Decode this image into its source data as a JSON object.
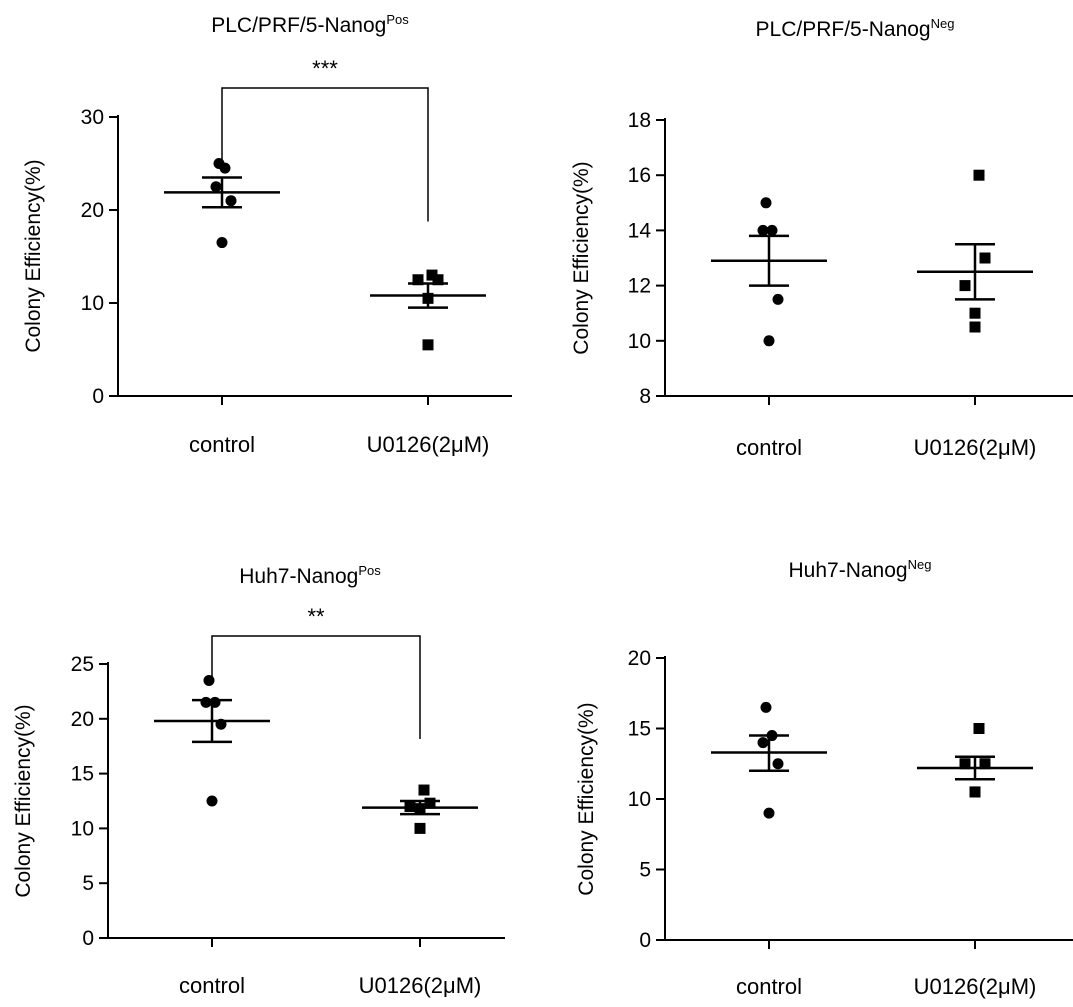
{
  "chart_data": [
    {
      "type": "scatter",
      "title": "PLC/PRF/5-Nanog",
      "title_sup": "Pos",
      "ylabel": "Colony Efficiency(%)",
      "categories": [
        "control",
        "U0126(2μM)"
      ],
      "yticks": [
        "0",
        "10",
        "20",
        "30"
      ],
      "ylim": [
        0,
        30
      ],
      "series": [
        {
          "marker": "circle",
          "values": [
            25,
            24.5,
            22.5,
            21,
            16.5
          ],
          "mean": 21.9,
          "sem": [
            20.3,
            23.5
          ]
        },
        {
          "marker": "square",
          "values": [
            13,
            12.5,
            12.5,
            10.5,
            5.5
          ],
          "mean": 10.8,
          "sem": [
            9.5,
            12.1
          ]
        }
      ],
      "significance": "***"
    },
    {
      "type": "scatter",
      "title": "PLC/PRF/5-Nanog",
      "title_sup": "Neg",
      "ylabel": "Colony Efficiency(%)",
      "categories": [
        "control",
        "U0126(2μM)"
      ],
      "yticks": [
        "8",
        "10",
        "12",
        "14",
        "16",
        "18"
      ],
      "ylim": [
        8,
        18
      ],
      "series": [
        {
          "marker": "circle",
          "values": [
            15,
            14,
            14,
            11.5,
            10
          ],
          "mean": 12.9,
          "sem": [
            12.0,
            13.8
          ]
        },
        {
          "marker": "square",
          "values": [
            16,
            13,
            12,
            11,
            10.5
          ],
          "mean": 12.5,
          "sem": [
            11.5,
            13.5
          ]
        }
      ]
    },
    {
      "type": "scatter",
      "title": "Huh7-Nanog",
      "title_sup": "Pos",
      "ylabel": "Colony Efficiency(%)",
      "categories": [
        "control",
        "U0126(2μM)"
      ],
      "yticks": [
        "0",
        "5",
        "10",
        "15",
        "20",
        "25"
      ],
      "ylim": [
        0,
        25
      ],
      "series": [
        {
          "marker": "circle",
          "values": [
            23.5,
            21.5,
            21.5,
            19.5,
            12.5
          ],
          "mean": 19.8,
          "sem": [
            17.9,
            21.7
          ]
        },
        {
          "marker": "square",
          "values": [
            13.5,
            12.3,
            12,
            11.8,
            10
          ],
          "mean": 11.9,
          "sem": [
            11.3,
            12.5
          ]
        }
      ],
      "significance": "**"
    },
    {
      "type": "scatter",
      "title": "Huh7-Nanog",
      "title_sup": "Neg",
      "ylabel": "Colony Efficiency(%)",
      "categories": [
        "control",
        "U0126(2μM)"
      ],
      "yticks": [
        "0",
        "5",
        "10",
        "15",
        "20"
      ],
      "ylim": [
        0,
        20
      ],
      "series": [
        {
          "marker": "circle",
          "values": [
            16.5,
            14.5,
            14,
            12.5,
            9
          ],
          "mean": 13.3,
          "sem": [
            12.0,
            14.5
          ]
        },
        {
          "marker": "square",
          "values": [
            15,
            12.5,
            12.5,
            10.5,
            10.5
          ],
          "mean": 12.2,
          "sem": [
            11.4,
            13.0
          ]
        }
      ]
    }
  ]
}
